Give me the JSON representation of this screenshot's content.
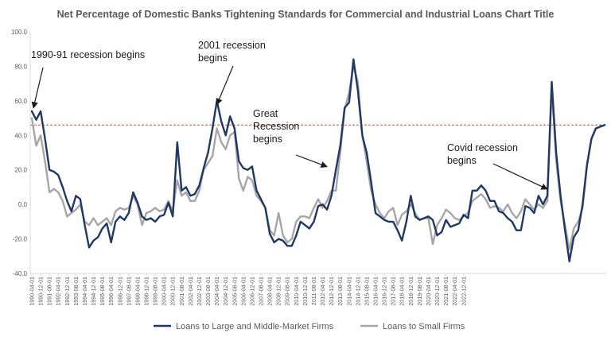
{
  "chart_data": {
    "type": "line",
    "title": "Net Percentage of Domestic Banks Tightening Standards for Commercial and Industrial Loans Chart Title",
    "xlabel": "",
    "ylabel": "",
    "ylim": [
      -40,
      100
    ],
    "yticks": [
      "-40.0",
      "-20.0",
      "0.0",
      "20.0",
      "40.0",
      "60.0",
      "80.0",
      "100.0"
    ],
    "xticks": [
      "1990-04-01",
      "1990-12-01",
      "1991-08-01",
      "1992-04-01",
      "1992-12-01",
      "1993-08-01",
      "1994-04-01",
      "1994-12-01",
      "1995-08-01",
      "1996-04-01",
      "1996-12-01",
      "1997-08-01",
      "1998-04-01",
      "1998-12-01",
      "1999-08-01",
      "2000-04-01",
      "2000-12-01",
      "2001-08-01",
      "2002-04-01",
      "2002-12-01",
      "2003-08-01",
      "2004-04-01",
      "2004-12-01",
      "2005-08-01",
      "2006-04-01",
      "2006-12-01",
      "2007-08-01",
      "2008-04-01",
      "2008-12-01",
      "2009-08-01",
      "2010-04-01",
      "2010-12-01",
      "2011-08-01",
      "2012-04-01",
      "2012-12-01",
      "2013-08-01",
      "2014-04-01",
      "2014-12-01",
      "2015-08-01",
      "2016-04-01",
      "2016-12-01",
      "2017-08-01",
      "2018-04-01",
      "2018-12-01",
      "2019-08-01",
      "2020-04-01",
      "2020-12-01",
      "2021-08-01",
      "2022-04-01",
      "2022-12-01"
    ],
    "grid": false,
    "legend_position": "bottom",
    "reference_line": {
      "y": 46,
      "color": "#c0504d",
      "style": "dashed"
    },
    "series": [
      {
        "name": "Loans to Large and Middle-Market Firms",
        "color": "#1f3864",
        "points": [
          [
            "1990-04-01",
            54
          ],
          [
            "1990-08-01",
            49
          ],
          [
            "1990-12-01",
            54
          ],
          [
            "1991-04-01",
            38
          ],
          [
            "1991-08-01",
            20
          ],
          [
            "1991-12-01",
            19
          ],
          [
            "1992-04-01",
            17
          ],
          [
            "1992-08-01",
            10
          ],
          [
            "1992-12-01",
            2
          ],
          [
            "1993-04-01",
            -4
          ],
          [
            "1993-08-01",
            5
          ],
          [
            "1993-12-01",
            3
          ],
          [
            "1994-04-01",
            -12
          ],
          [
            "1994-08-01",
            -25
          ],
          [
            "1994-12-01",
            -21
          ],
          [
            "1995-04-01",
            -19
          ],
          [
            "1995-08-01",
            -14
          ],
          [
            "1995-12-01",
            -11
          ],
          [
            "1996-04-01",
            -22
          ],
          [
            "1996-08-01",
            -10
          ],
          [
            "1996-12-01",
            -7
          ],
          [
            "1997-04-01",
            -9
          ],
          [
            "1997-08-01",
            -5
          ],
          [
            "1997-12-01",
            7
          ],
          [
            "1998-04-01",
            1
          ],
          [
            "1998-08-01",
            -7
          ],
          [
            "1998-12-01",
            -9
          ],
          [
            "1999-04-01",
            -8
          ],
          [
            "1999-08-01",
            -10
          ],
          [
            "1999-12-01",
            -7
          ],
          [
            "2000-04-01",
            -6
          ],
          [
            "2000-08-01",
            1
          ],
          [
            "2000-12-01",
            -7
          ],
          [
            "2001-04-01",
            36
          ],
          [
            "2001-08-01",
            8
          ],
          [
            "2001-12-01",
            10
          ],
          [
            "2002-04-01",
            5
          ],
          [
            "2002-08-01",
            6
          ],
          [
            "2002-12-01",
            11
          ],
          [
            "2003-04-01",
            21
          ],
          [
            "2003-08-01",
            30
          ],
          [
            "2003-12-01",
            44
          ],
          [
            "2004-04-01",
            60
          ],
          [
            "2004-08-01",
            48
          ],
          [
            "2004-12-01",
            40
          ],
          [
            "2005-04-01",
            51
          ],
          [
            "2005-08-01",
            44
          ],
          [
            "2005-12-01",
            25
          ],
          [
            "2006-04-01",
            21
          ],
          [
            "2006-08-01",
            20
          ],
          [
            "2006-12-01",
            22
          ],
          [
            "2007-04-01",
            8
          ],
          [
            "2007-08-01",
            3
          ],
          [
            "2007-12-01",
            -2
          ],
          [
            "2008-04-01",
            -17
          ],
          [
            "2008-08-01",
            -22
          ],
          [
            "2008-12-01",
            -20
          ],
          [
            "2009-04-01",
            -21
          ],
          [
            "2009-08-01",
            -24
          ],
          [
            "2009-12-01",
            -24
          ],
          [
            "2010-04-01",
            -18
          ],
          [
            "2010-08-01",
            -10
          ],
          [
            "2010-12-01",
            -12
          ],
          [
            "2011-04-01",
            -14
          ],
          [
            "2011-08-01",
            -10
          ],
          [
            "2011-12-01",
            -1
          ],
          [
            "2012-04-01",
            0
          ],
          [
            "2012-08-01",
            -3
          ],
          [
            "2012-12-01",
            5
          ],
          [
            "2013-04-01",
            20
          ],
          [
            "2013-08-01",
            34
          ],
          [
            "2013-12-01",
            56
          ],
          [
            "2014-04-01",
            59
          ],
          [
            "2014-08-01",
            84
          ],
          [
            "2014-12-01",
            66
          ],
          [
            "2015-04-01",
            40
          ],
          [
            "2015-08-01",
            30
          ],
          [
            "2015-12-01",
            13
          ],
          [
            "2016-04-01",
            -5
          ],
          [
            "2016-08-01",
            -7
          ],
          [
            "2016-12-01",
            -9
          ],
          [
            "2017-04-01",
            -10
          ],
          [
            "2017-08-01",
            -10
          ],
          [
            "2017-12-01",
            -15
          ],
          [
            "2018-04-01",
            -21
          ],
          [
            "2018-08-01",
            -10
          ],
          [
            "2018-12-01",
            5
          ],
          [
            "2019-04-01",
            -7
          ],
          [
            "2019-08-01",
            -9
          ],
          [
            "2019-12-01",
            -8
          ],
          [
            "2020-04-01",
            -7
          ],
          [
            "2020-08-01",
            -9
          ],
          [
            "2020-12-01",
            -18
          ],
          [
            "2021-04-01",
            -16
          ],
          [
            "2021-08-01",
            -9
          ],
          [
            "2021-12-01",
            -13
          ],
          [
            "2022-04-01",
            -12
          ],
          [
            "2022-08-01",
            -11
          ],
          [
            "2022-12-01",
            -6
          ],
          [
            "2023-04-01",
            -8
          ],
          [
            "2023-08-01",
            8
          ],
          [
            "2023-12-01",
            8
          ],
          [
            "2024-04-01",
            11
          ],
          [
            "2024-08-01",
            8
          ],
          [
            "2024-12-01",
            2
          ],
          [
            "2025-04-01",
            2
          ],
          [
            "2025-08-01",
            -4
          ],
          [
            "2025-12-01",
            -5
          ],
          [
            "2026-04-01",
            -8
          ],
          [
            "2026-08-01",
            -10
          ],
          [
            "2026-12-01",
            -15
          ],
          [
            "2027-04-01",
            -15
          ],
          [
            "2027-08-01",
            -1
          ],
          [
            "2027-12-01",
            -2
          ],
          [
            "2028-04-01",
            -5
          ],
          [
            "2028-08-01",
            5
          ],
          [
            "2028-12-01",
            0
          ],
          [
            "2029-04-01",
            5
          ],
          [
            "2029-08-01",
            71
          ],
          [
            "2029-12-01",
            30
          ],
          [
            "2030-04-01",
            5
          ],
          [
            "2030-08-01",
            -15
          ],
          [
            "2030-12-01",
            -33
          ],
          [
            "2031-04-01",
            -19
          ],
          [
            "2031-08-01",
            -15
          ],
          [
            "2031-12-01",
            0
          ],
          [
            "2032-04-01",
            23
          ],
          [
            "2032-08-01",
            38
          ],
          [
            "2032-12-01",
            44
          ],
          [
            "2033-04-01",
            45
          ],
          [
            "2033-08-01",
            46
          ]
        ]
      },
      {
        "name": "Loans to Small Firms",
        "color": "#a6a6a6",
        "points": [
          [
            "1990-04-01",
            50
          ],
          [
            "1990-08-01",
            34
          ],
          [
            "1990-12-01",
            40
          ],
          [
            "1991-04-01",
            25
          ],
          [
            "1991-08-01",
            7
          ],
          [
            "1991-12-01",
            9
          ],
          [
            "1992-04-01",
            7
          ],
          [
            "1992-08-01",
            2
          ],
          [
            "1992-12-01",
            -7
          ],
          [
            "1993-04-01",
            -5
          ],
          [
            "1993-08-01",
            -3
          ],
          [
            "1993-12-01",
            0
          ],
          [
            "1994-04-01",
            -10
          ],
          [
            "1994-08-01",
            -12
          ],
          [
            "1994-12-01",
            -8
          ],
          [
            "1995-04-01",
            -12
          ],
          [
            "1995-08-01",
            -10
          ],
          [
            "1995-12-01",
            -8
          ],
          [
            "1996-04-01",
            -12
          ],
          [
            "1996-08-01",
            -4
          ],
          [
            "1996-12-01",
            -2
          ],
          [
            "1997-04-01",
            -3
          ],
          [
            "1997-08-01",
            -2
          ],
          [
            "1997-12-01",
            5
          ],
          [
            "1998-04-01",
            0
          ],
          [
            "1998-08-01",
            -12
          ],
          [
            "1998-12-01",
            -5
          ],
          [
            "1999-04-01",
            -4
          ],
          [
            "1999-08-01",
            -2
          ],
          [
            "1999-12-01",
            -4
          ],
          [
            "2000-04-01",
            -3
          ],
          [
            "2000-08-01",
            2
          ],
          [
            "2000-12-01",
            -4
          ],
          [
            "2001-04-01",
            14
          ],
          [
            "2001-08-01",
            5
          ],
          [
            "2001-12-01",
            7
          ],
          [
            "2002-04-01",
            2
          ],
          [
            "2002-08-01",
            2
          ],
          [
            "2002-12-01",
            8
          ],
          [
            "2003-04-01",
            20
          ],
          [
            "2003-08-01",
            24
          ],
          [
            "2003-12-01",
            28
          ],
          [
            "2004-04-01",
            44
          ],
          [
            "2004-08-01",
            36
          ],
          [
            "2004-12-01",
            32
          ],
          [
            "2005-04-01",
            40
          ],
          [
            "2005-08-01",
            42
          ],
          [
            "2005-12-01",
            15
          ],
          [
            "2006-04-01",
            8
          ],
          [
            "2006-08-01",
            16
          ],
          [
            "2006-12-01",
            14
          ],
          [
            "2007-04-01",
            5
          ],
          [
            "2007-08-01",
            2
          ],
          [
            "2007-12-01",
            -2
          ],
          [
            "2008-04-01",
            -15
          ],
          [
            "2008-08-01",
            -18
          ],
          [
            "2008-12-01",
            -5
          ],
          [
            "2009-04-01",
            -18
          ],
          [
            "2009-08-01",
            -22
          ],
          [
            "2009-12-01",
            -20
          ],
          [
            "2010-04-01",
            -10
          ],
          [
            "2010-08-01",
            -7
          ],
          [
            "2010-12-01",
            -7
          ],
          [
            "2011-04-01",
            -8
          ],
          [
            "2011-08-01",
            -2
          ],
          [
            "2011-12-01",
            3
          ],
          [
            "2012-04-01",
            -2
          ],
          [
            "2012-08-01",
            2
          ],
          [
            "2012-12-01",
            8
          ],
          [
            "2013-04-01",
            8
          ],
          [
            "2013-08-01",
            30
          ],
          [
            "2013-12-01",
            55
          ],
          [
            "2014-04-01",
            65
          ],
          [
            "2014-08-01",
            80
          ],
          [
            "2014-12-01",
            71
          ],
          [
            "2015-04-01",
            40
          ],
          [
            "2015-08-01",
            25
          ],
          [
            "2015-12-01",
            8
          ],
          [
            "2016-04-01",
            0
          ],
          [
            "2016-08-01",
            -5
          ],
          [
            "2016-12-01",
            -8
          ],
          [
            "2017-04-01",
            -4
          ],
          [
            "2017-08-01",
            -2
          ],
          [
            "2017-12-01",
            -12
          ],
          [
            "2018-04-01",
            -6
          ],
          [
            "2018-08-01",
            -4
          ],
          [
            "2018-12-01",
            0
          ],
          [
            "2019-04-01",
            -5
          ],
          [
            "2019-08-01",
            -9
          ],
          [
            "2019-12-01",
            -8
          ],
          [
            "2020-04-01",
            -8
          ],
          [
            "2020-08-01",
            -23
          ],
          [
            "2020-12-01",
            -12
          ],
          [
            "2021-04-01",
            -8
          ],
          [
            "2021-08-01",
            -3
          ],
          [
            "2021-12-01",
            -5
          ],
          [
            "2022-04-01",
            -8
          ],
          [
            "2022-08-01",
            -9
          ],
          [
            "2022-12-01",
            -7
          ],
          [
            "2023-04-01",
            -5
          ],
          [
            "2023-08-01",
            2
          ],
          [
            "2023-12-01",
            4
          ],
          [
            "2024-04-01",
            6
          ],
          [
            "2024-08-01",
            3
          ],
          [
            "2024-12-01",
            -2
          ],
          [
            "2025-04-01",
            -1
          ],
          [
            "2025-08-01",
            -2
          ],
          [
            "2025-12-01",
            -4
          ],
          [
            "2026-04-01",
            0
          ],
          [
            "2026-08-01",
            -5
          ],
          [
            "2026-12-01",
            -8
          ],
          [
            "2027-04-01",
            -4
          ],
          [
            "2027-08-01",
            3
          ],
          [
            "2027-12-01",
            0
          ],
          [
            "2028-04-01",
            -3
          ],
          [
            "2028-08-01",
            0
          ],
          [
            "2028-12-01",
            -2
          ],
          [
            "2029-04-01",
            2
          ],
          [
            "2029-08-01",
            68
          ],
          [
            "2029-12-01",
            25
          ],
          [
            "2030-04-01",
            2
          ],
          [
            "2030-08-01",
            -12
          ],
          [
            "2030-12-01",
            -26
          ],
          [
            "2031-04-01",
            -14
          ],
          [
            "2031-08-01",
            -10
          ],
          [
            "2031-12-01",
            -2
          ],
          [
            "2032-04-01",
            22
          ],
          [
            "2032-08-01",
            38
          ],
          [
            "2032-12-01",
            44
          ],
          [
            "2033-04-01",
            45
          ],
          [
            "2033-08-01",
            46
          ]
        ]
      }
    ],
    "annotations": [
      {
        "text": [
          "1990-91 recession begins"
        ],
        "x": "1990-04-01",
        "y": 54
      },
      {
        "text": [
          "2001 recession",
          "begins"
        ],
        "x": "2004-04-01",
        "y": 56
      },
      {
        "text": [
          "Great",
          "Recession",
          "begins"
        ],
        "x": "2012-08-01",
        "y": 20
      },
      {
        "text": [
          "Covid recession",
          "begins"
        ],
        "x": "2029-04-01",
        "y": 7
      }
    ]
  }
}
